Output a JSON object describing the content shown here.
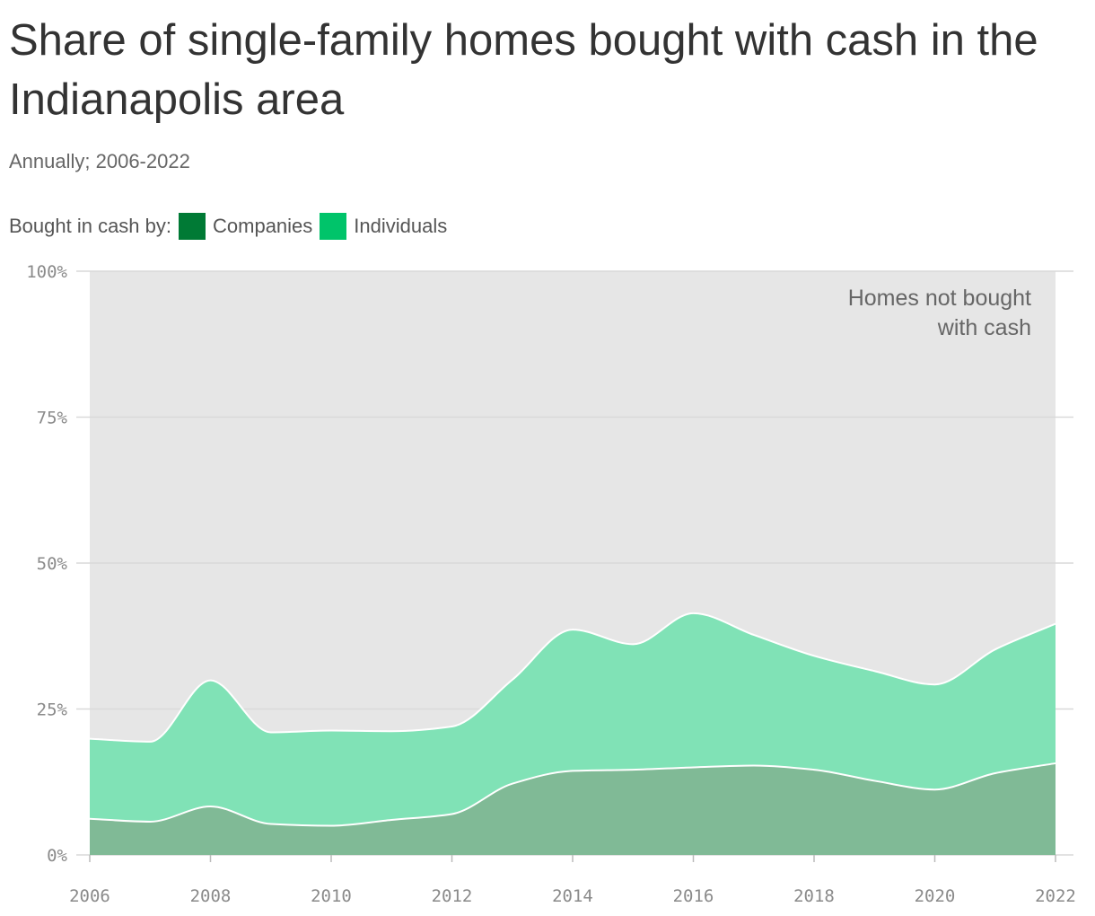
{
  "title": "Share of single-family homes bought with cash in the Indianapolis area",
  "subtitle": "Annually; 2006-2022",
  "legend": {
    "prefix": "Bought in cash by:",
    "items": [
      {
        "label": "Companies",
        "color": "#007a35"
      },
      {
        "label": "Individuals",
        "color": "#00c46a"
      }
    ]
  },
  "annotation": {
    "lines": [
      "Homes not bought",
      "with cash"
    ]
  },
  "colors": {
    "background_area": "#e6e6e6",
    "companies_area": "#80ba96",
    "individuals_area": "#80e2b6",
    "gridline": "#d9d9d9",
    "separator": "#ffffff"
  },
  "chart_data": {
    "type": "area",
    "stacked": true,
    "x": [
      2006,
      2007,
      2008,
      2009,
      2010,
      2011,
      2012,
      2013,
      2014,
      2015,
      2016,
      2017,
      2018,
      2019,
      2020,
      2021,
      2022
    ],
    "series": [
      {
        "name": "Companies",
        "values": [
          6.2,
          5.7,
          8.3,
          5.3,
          5.0,
          6.0,
          7.0,
          12.2,
          14.4,
          14.6,
          15.0,
          15.3,
          14.6,
          12.7,
          11.2,
          14.0,
          15.7
        ]
      },
      {
        "name": "Individuals",
        "values": [
          13.7,
          13.7,
          21.6,
          15.7,
          16.3,
          15.2,
          15.0,
          17.8,
          24.2,
          21.5,
          26.4,
          22.4,
          19.5,
          18.8,
          18.0,
          21.2,
          23.9
        ]
      }
    ],
    "y_ticks": [
      "0%",
      "25%",
      "50%",
      "75%",
      "100%"
    ],
    "y_tick_values": [
      0,
      25,
      50,
      75,
      100
    ],
    "x_ticks": [
      "2006",
      "2008",
      "2010",
      "2012",
      "2014",
      "2016",
      "2018",
      "2020",
      "2022"
    ],
    "x_tick_values": [
      2006,
      2008,
      2010,
      2012,
      2014,
      2016,
      2018,
      2020,
      2022
    ],
    "ylim": [
      0,
      100
    ],
    "xlim": [
      2006,
      2022
    ],
    "grid": true,
    "legend_position": "top-left"
  }
}
